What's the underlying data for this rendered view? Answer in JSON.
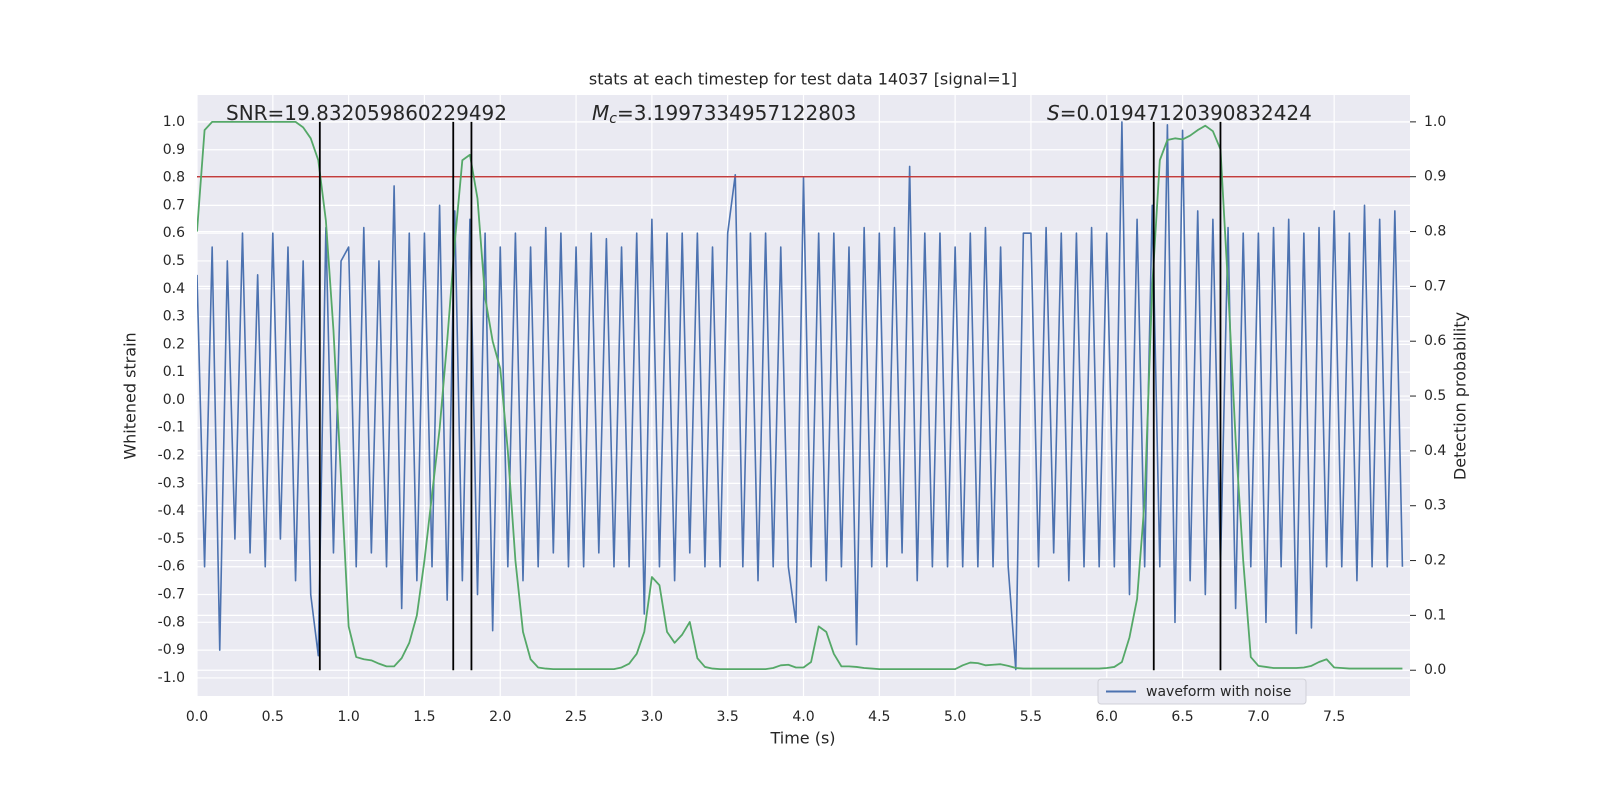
{
  "chart_data": {
    "type": "line",
    "title": "stats at each timestep for test data 14037 [signal=1]",
    "xlabel": "Time (s)",
    "ylabel": "Whitened strain",
    "y2label": "Detection probability",
    "annotations": [
      {
        "text": "SNR=19.832059860229492"
      },
      {
        "symbol": "M",
        "subscript": "c",
        "text": "=3.1997334957122803"
      },
      {
        "symbol": "S",
        "text": "=0.01947120390832424"
      }
    ],
    "x": [
      0,
      0.05,
      0.1,
      0.15,
      0.2,
      0.25,
      0.3,
      0.35,
      0.4,
      0.45,
      0.5,
      0.55,
      0.6,
      0.65,
      0.7,
      0.75,
      0.8,
      0.85,
      0.9,
      0.95,
      1,
      1.05,
      1.1,
      1.15,
      1.2,
      1.25,
      1.3,
      1.35,
      1.4,
      1.45,
      1.5,
      1.55,
      1.6,
      1.65,
      1.7,
      1.75,
      1.8,
      1.85,
      1.9,
      1.95,
      2,
      2.05,
      2.1,
      2.15,
      2.2,
      2.25,
      2.3,
      2.35,
      2.4,
      2.45,
      2.5,
      2.55,
      2.6,
      2.65,
      2.7,
      2.75,
      2.8,
      2.85,
      2.9,
      2.95,
      3,
      3.05,
      3.1,
      3.15,
      3.2,
      3.25,
      3.3,
      3.35,
      3.4,
      3.45,
      3.5,
      3.55,
      3.6,
      3.65,
      3.7,
      3.75,
      3.8,
      3.85,
      3.9,
      3.95,
      4,
      4.05,
      4.1,
      4.15,
      4.2,
      4.25,
      4.3,
      4.35,
      4.4,
      4.45,
      4.5,
      4.55,
      4.6,
      4.65,
      4.7,
      4.75,
      4.8,
      4.85,
      4.9,
      4.95,
      5,
      5.05,
      5.1,
      5.15,
      5.2,
      5.25,
      5.3,
      5.35,
      5.4,
      5.45,
      5.5,
      5.55,
      5.6,
      5.65,
      5.7,
      5.75,
      5.8,
      5.85,
      5.9,
      5.95,
      6,
      6.05,
      6.1,
      6.15,
      6.2,
      6.25,
      6.3,
      6.35,
      6.4,
      6.45,
      6.5,
      6.55,
      6.6,
      6.65,
      6.7,
      6.75,
      6.8,
      6.85,
      6.9,
      6.95,
      7,
      7.05,
      7.1,
      7.15,
      7.2,
      7.25,
      7.3,
      7.35,
      7.4,
      7.45,
      7.5,
      7.55,
      7.6,
      7.65,
      7.7,
      7.75,
      7.8,
      7.85,
      7.9,
      7.95
    ],
    "series": [
      {
        "name": "waveform with noise",
        "color": "#4c72b0",
        "values": [
          0.45,
          -0.6,
          0.55,
          -0.9,
          0.5,
          -0.5,
          0.6,
          -0.55,
          0.45,
          -0.6,
          0.6,
          -0.5,
          0.55,
          -0.65,
          0.5,
          -0.7,
          -0.92,
          0.62,
          -0.55,
          0.5,
          0.55,
          -0.6,
          0.62,
          -0.55,
          0.5,
          -0.6,
          0.77,
          -0.75,
          0.6,
          -0.65,
          0.6,
          -0.6,
          0.7,
          -0.72,
          0.68,
          -0.65,
          0.65,
          -0.7,
          0.6,
          -0.83,
          0.55,
          -0.6,
          0.6,
          -0.65,
          0.55,
          -0.6,
          0.62,
          -0.55,
          0.6,
          -0.6,
          0.55,
          -0.6,
          0.6,
          -0.55,
          0.58,
          -0.6,
          0.55,
          -0.6,
          0.6,
          -0.77,
          0.65,
          -0.6,
          0.6,
          -0.65,
          0.6,
          -0.55,
          0.6,
          -0.6,
          0.55,
          -0.6,
          0.6,
          0.81,
          -0.6,
          0.6,
          -0.65,
          0.6,
          -0.6,
          0.55,
          -0.6,
          -0.8,
          0.8,
          -0.6,
          0.6,
          -0.65,
          0.6,
          -0.6,
          0.55,
          -0.88,
          0.62,
          -0.6,
          0.6,
          -0.6,
          0.62,
          -0.55,
          0.84,
          -0.65,
          0.6,
          -0.6,
          0.6,
          -0.6,
          0.55,
          -0.6,
          0.6,
          -0.6,
          0.62,
          -0.6,
          0.55,
          -0.6,
          -0.97,
          0.6,
          0.6,
          -0.6,
          0.62,
          -0.55,
          0.6,
          -0.65,
          0.6,
          -0.6,
          0.62,
          -0.6,
          0.6,
          -0.6,
          1.0,
          -0.7,
          0.65,
          -0.6,
          0.7,
          -0.6,
          0.99,
          -0.8,
          0.97,
          -0.65,
          0.68,
          -0.7,
          0.65,
          -0.6,
          0.62,
          -0.75,
          0.6,
          -0.6,
          0.6,
          -0.8,
          0.62,
          -0.6,
          0.65,
          -0.84,
          0.6,
          -0.82,
          0.62,
          -0.6,
          0.68,
          -0.6,
          0.6,
          -0.65,
          0.7,
          -0.6,
          0.65,
          -0.6,
          0.68,
          -0.6
        ]
      },
      {
        "color": "#55a868",
        "axis": "y2",
        "values": [
          0.8,
          0.985,
          1.0,
          1.0,
          1.0,
          1.0,
          1.0,
          1.0,
          1.0,
          1.0,
          1.0,
          1.0,
          1.0,
          1.0,
          0.99,
          0.97,
          0.93,
          0.82,
          0.62,
          0.35,
          0.08,
          0.024,
          0.02,
          0.018,
          0.012,
          0.007,
          0.007,
          0.022,
          0.05,
          0.1,
          0.2,
          0.32,
          0.44,
          0.6,
          0.78,
          0.93,
          0.94,
          0.86,
          0.68,
          0.6,
          0.55,
          0.4,
          0.2,
          0.07,
          0.02,
          0.005,
          0.003,
          0.002,
          0.002,
          0.002,
          0.002,
          0.002,
          0.002,
          0.002,
          0.002,
          0.002,
          0.005,
          0.012,
          0.03,
          0.07,
          0.17,
          0.155,
          0.07,
          0.05,
          0.065,
          0.088,
          0.022,
          0.006,
          0.003,
          0.002,
          0.002,
          0.002,
          0.002,
          0.002,
          0.002,
          0.002,
          0.004,
          0.009,
          0.01,
          0.005,
          0.005,
          0.015,
          0.08,
          0.07,
          0.03,
          0.007,
          0.007,
          0.006,
          0.004,
          0.003,
          0.002,
          0.002,
          0.002,
          0.002,
          0.002,
          0.002,
          0.002,
          0.002,
          0.002,
          0.002,
          0.002,
          0.009,
          0.014,
          0.013,
          0.009,
          0.01,
          0.011,
          0.008,
          0.004,
          0.003,
          0.003,
          0.003,
          0.003,
          0.003,
          0.003,
          0.003,
          0.003,
          0.003,
          0.003,
          0.003,
          0.004,
          0.006,
          0.015,
          0.06,
          0.13,
          0.31,
          0.7,
          0.93,
          0.967,
          0.97,
          0.968,
          0.975,
          0.985,
          0.993,
          0.983,
          0.95,
          0.7,
          0.42,
          0.2,
          0.024,
          0.008,
          0.006,
          0.004,
          0.004,
          0.004,
          0.004,
          0.005,
          0.008,
          0.015,
          0.02,
          0.005,
          0.004,
          0.003,
          0.003,
          0.003,
          0.003,
          0.003,
          0.003,
          0.003,
          0.003
        ]
      }
    ],
    "vlines": [
      0.81,
      1.69,
      1.81,
      6.31,
      6.75
    ],
    "vline_color": "#000000",
    "hline": 0.9,
    "hline_axis": "y2",
    "hline_color": "#c03d3e",
    "xlim": [
      0,
      8.0
    ],
    "xticks": [
      {
        "value": 0,
        "label": "0.0"
      },
      0.5,
      {
        "value": 1,
        "label": "1.0"
      },
      1.5,
      {
        "value": 2,
        "label": "2.0"
      },
      2.5,
      {
        "value": 3,
        "label": "3.0"
      },
      3.5,
      {
        "value": 4,
        "label": "4.0"
      },
      4.5,
      {
        "value": 5,
        "label": "5.0"
      },
      5.5,
      {
        "value": 6,
        "label": "6.0"
      },
      6.5,
      {
        "value": 7,
        "label": "7.0"
      },
      7.5
    ],
    "ylim": [
      -1.065,
      1.097
    ],
    "yticks": [
      {
        "value": -1,
        "label": "-1.0"
      },
      -0.9,
      -0.8,
      -0.7,
      -0.6,
      -0.5,
      -0.4,
      -0.3,
      -0.2,
      -0.1,
      {
        "value": 0,
        "label": "0.0"
      },
      0.1,
      0.2,
      0.3,
      0.4,
      0.5,
      0.6,
      0.7,
      0.8,
      0.9,
      {
        "value": 1,
        "label": "1.0"
      }
    ],
    "y2lim": [
      -0.047,
      1.049
    ],
    "y2ticks": [
      {
        "value": 0,
        "label": "0.0"
      },
      0.1,
      0.2,
      0.3,
      0.4,
      0.5,
      0.6,
      0.7,
      0.8,
      0.9,
      {
        "value": 1,
        "label": "1.0"
      }
    ],
    "grid": true,
    "legend": "lower right"
  }
}
